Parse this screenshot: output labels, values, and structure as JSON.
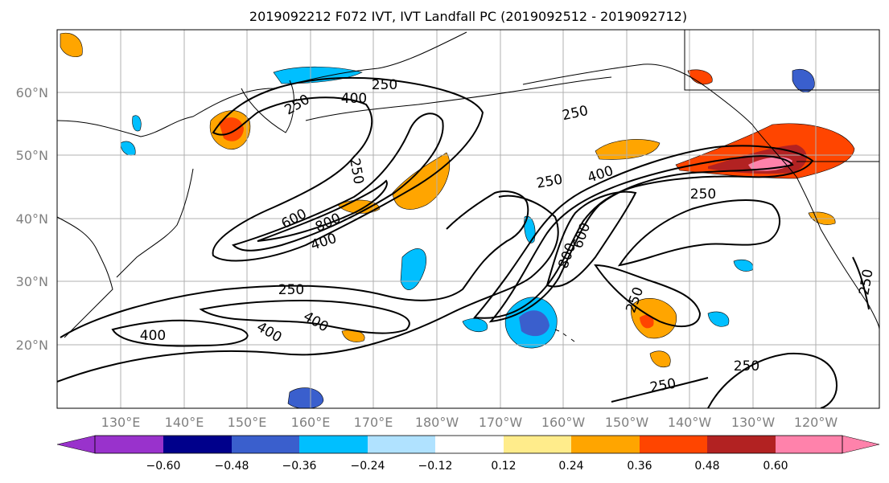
{
  "title": "2019092212 F072 IVT, IVT Landfall PC (2019092512 - 2019092712)",
  "map": {
    "lat_ticks": [
      "60°N",
      "50°N",
      "40°N",
      "30°N",
      "20°N"
    ],
    "lon_ticks": [
      "130°E",
      "140°E",
      "150°E",
      "160°E",
      "170°E",
      "180°W",
      "170°W",
      "160°W",
      "150°W",
      "140°W",
      "130°W",
      "120°W"
    ],
    "contour_labels": [
      "250",
      "250",
      "400",
      "250",
      "250",
      "600",
      "800",
      "400",
      "250",
      "400",
      "250",
      "800",
      "600",
      "250",
      "400",
      "400",
      "400",
      "250",
      "250",
      "250",
      "250"
    ],
    "grid": true
  },
  "colorbar": {
    "tick_labels": [
      "−0.60",
      "−0.48",
      "−0.36",
      "−0.24",
      "−0.12",
      "0.12",
      "0.24",
      "0.36",
      "0.48",
      "0.60"
    ],
    "colors": [
      "#9932CC",
      "#00008B",
      "#3A5FCD",
      "#00BFFF",
      "#B0E2FF",
      "#FFFFFF",
      "#FFEC8B",
      "#FFA500",
      "#FF4500",
      "#B22222",
      "#FF82AB"
    ]
  }
}
